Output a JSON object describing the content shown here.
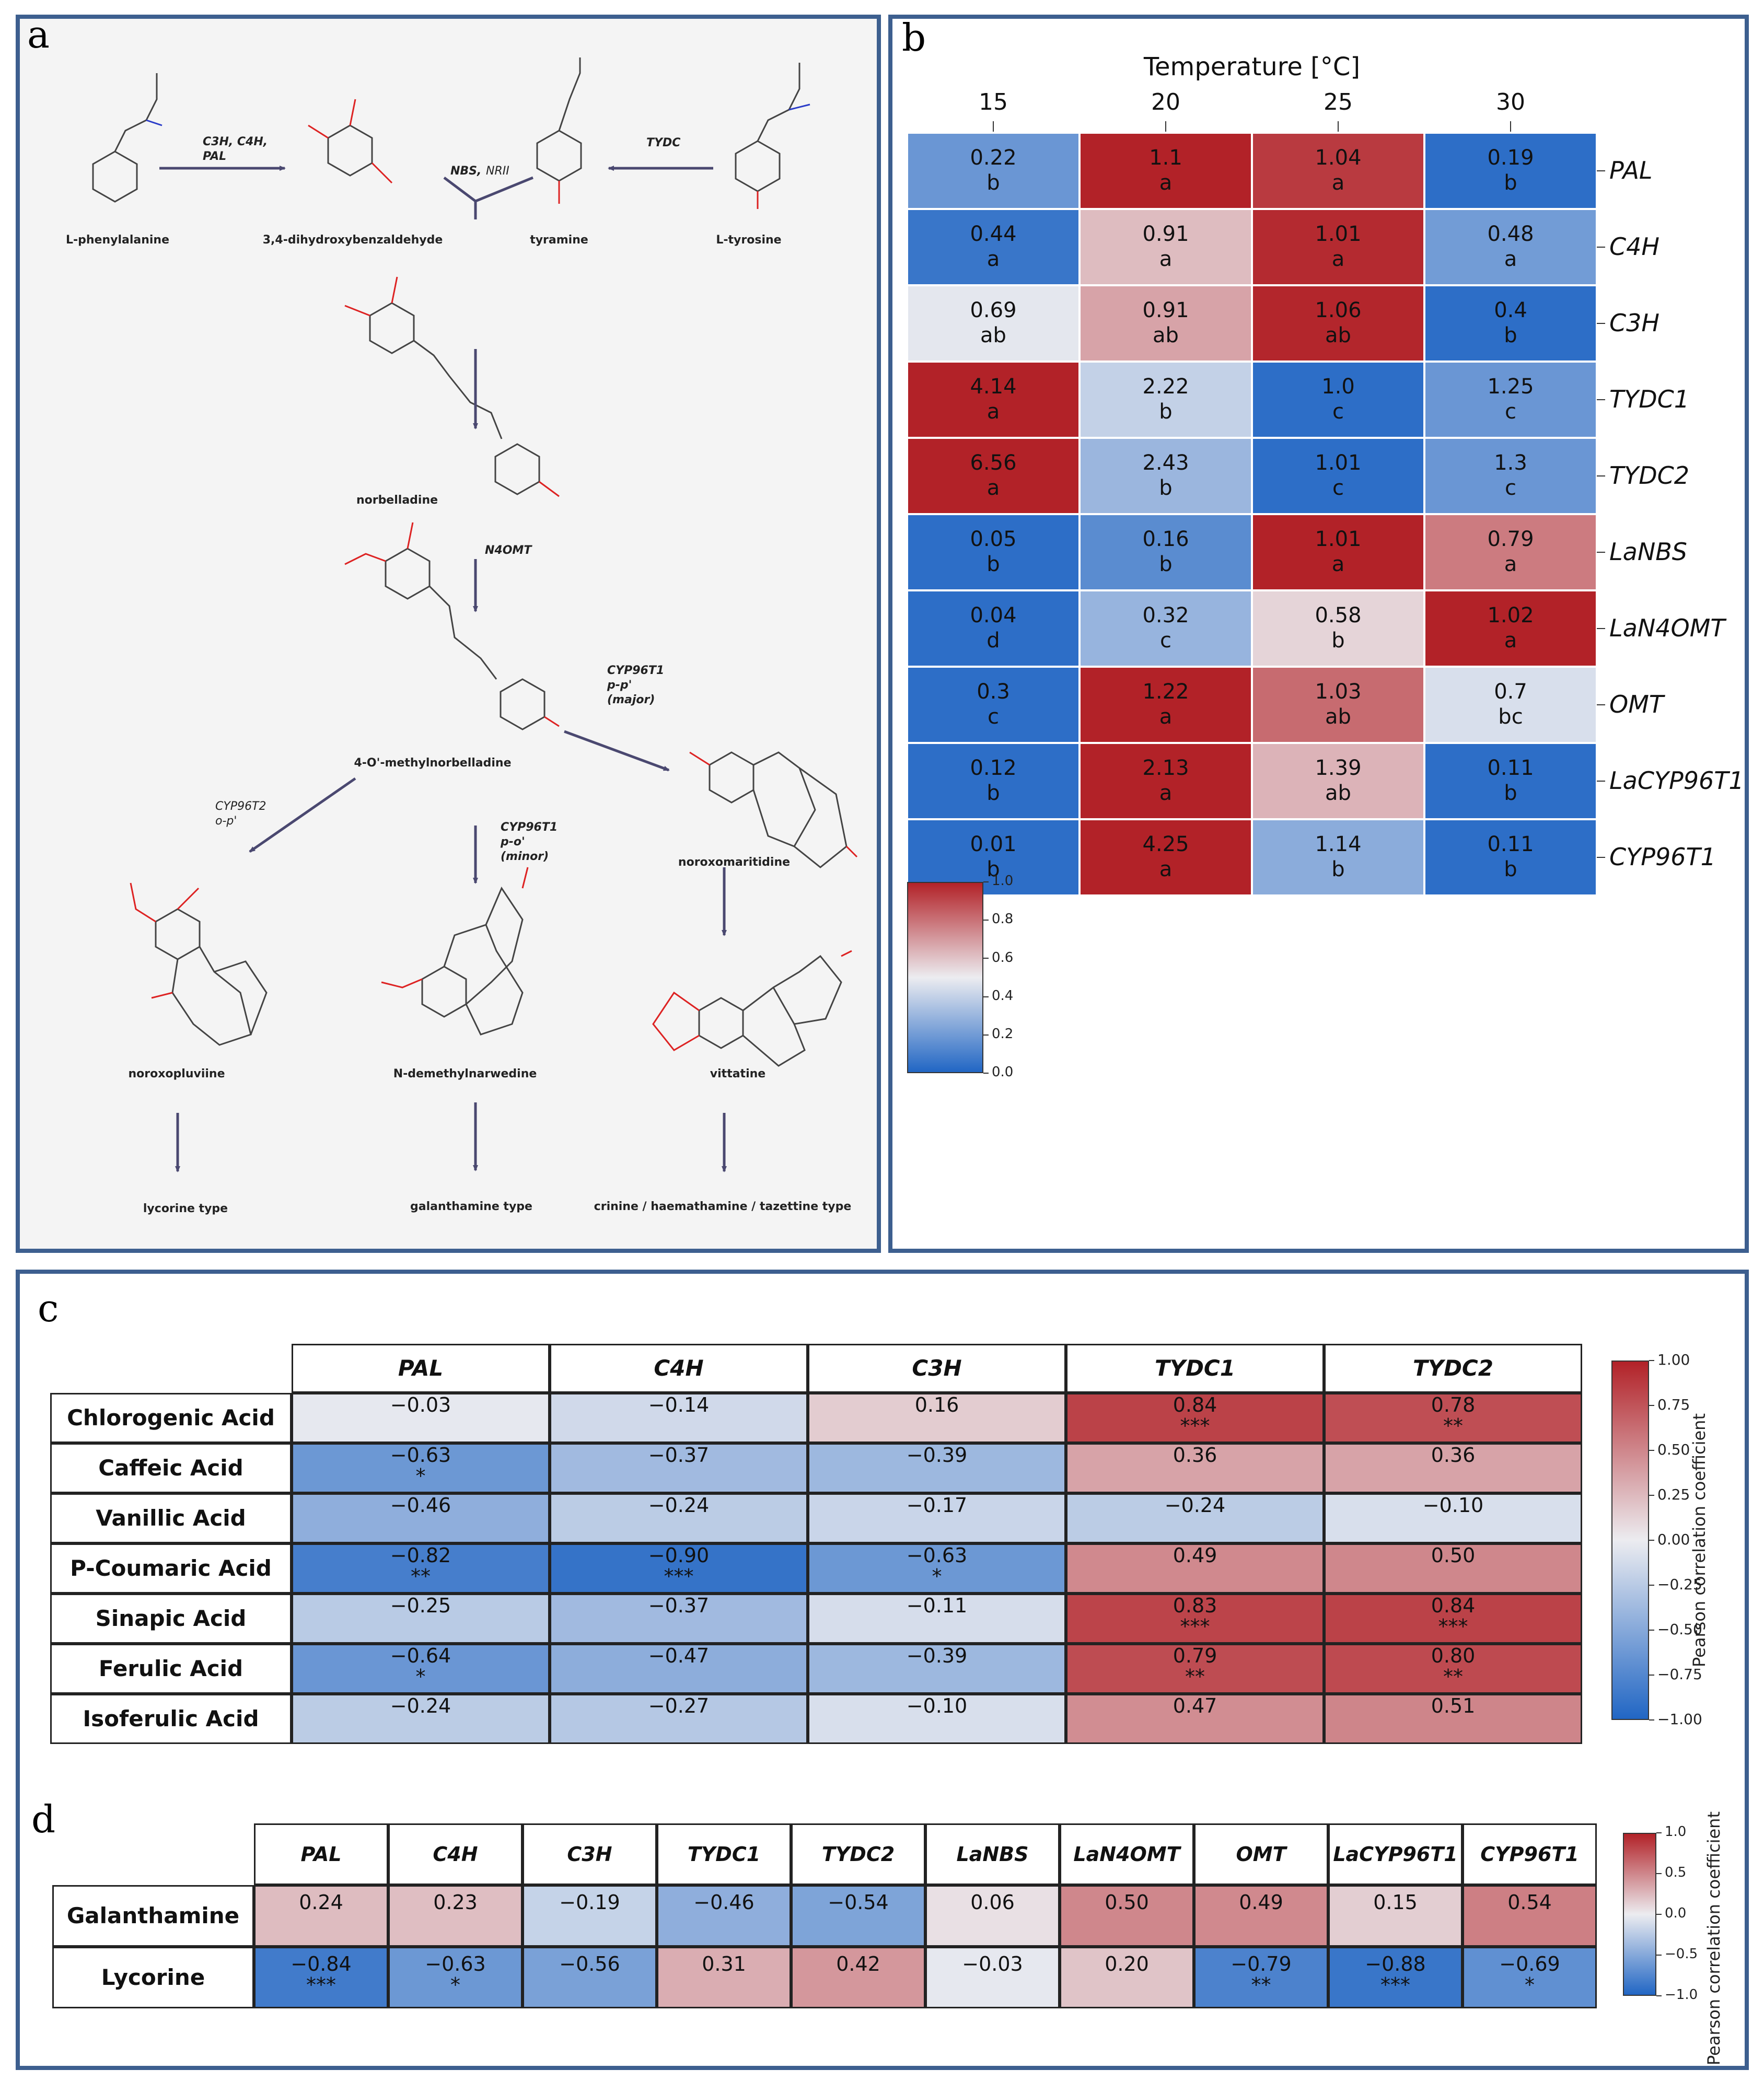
{
  "panel_labels": {
    "a": "a",
    "b": "b",
    "c": "c",
    "d": "d"
  },
  "pathway": {
    "compounds": {
      "l_phenylalanine": "L-phenylalanine",
      "dihydroxybenzaldehyde": "3,4-dihydroxybenzaldehyde",
      "tyramine": "tyramine",
      "l_tyrosine": "L-tyrosine",
      "norbelladine": "norbelladine",
      "methylnorbelladine": "4-O'-methylnorbelladine",
      "noroxomaritidine": "noroxomaritidine",
      "noroxopluviine": "noroxopluviine",
      "n_demethylnarwedine": "N-demethylnarwedine",
      "vittatine": "vittatine",
      "lycorine_type": "lycorine type",
      "galanthamine_type": "galanthamine type",
      "crinine_type": "crinine / haemathamine / tazettine type"
    },
    "enzymes": {
      "c3h_c4h": "C3H, C4H,",
      "pal": "PAL",
      "nbs": "NBS,",
      "nrii": "NRII",
      "tydc": "TYDC",
      "n4omt": "N4OMT",
      "cyp_pp_1": "CYP96T1",
      "cyp_pp_2": "p-p'",
      "cyp_pp_3": "(major)",
      "cyp2_1": "CYP96T2",
      "cyp2_2": "o-p'",
      "cyp_po_1": "CYP96T1",
      "cyp_po_2": "p-o'",
      "cyp_po_3": "(minor)"
    }
  },
  "chart_data": [
    {
      "type": "heatmap",
      "panel": "b",
      "title": "Temperature [°C]",
      "x_categories": [
        "15",
        "20",
        "25",
        "30"
      ],
      "y_categories": [
        "PAL",
        "C4H",
        "C3H",
        "TYDC1",
        "TYDC2",
        "LaNBS",
        "LaN4OMT",
        "OMT",
        "LaCYP96T1",
        "CYP96T1"
      ],
      "values": [
        [
          "0.22",
          "1.1",
          "1.04",
          "0.19"
        ],
        [
          "0.44",
          "0.91",
          "1.01",
          "0.48"
        ],
        [
          "0.69",
          "0.91",
          "1.06",
          "0.4"
        ],
        [
          "4.14",
          "2.22",
          "1.0",
          "1.25"
        ],
        [
          "6.56",
          "2.43",
          "1.01",
          "1.3"
        ],
        [
          "0.05",
          "0.16",
          "1.01",
          "0.79"
        ],
        [
          "0.04",
          "0.32",
          "0.58",
          "1.02"
        ],
        [
          "0.3",
          "1.22",
          "1.03",
          "0.7"
        ],
        [
          "0.12",
          "2.13",
          "1.39",
          "0.11"
        ],
        [
          "0.01",
          "4.25",
          "1.14",
          "0.11"
        ]
      ],
      "letters": [
        [
          "b",
          "a",
          "a",
          "b"
        ],
        [
          "a",
          "a",
          "a",
          "a"
        ],
        [
          "ab",
          "ab",
          "ab",
          "b"
        ],
        [
          "a",
          "b",
          "c",
          "c"
        ],
        [
          "a",
          "b",
          "c",
          "c"
        ],
        [
          "b",
          "b",
          "a",
          "a"
        ],
        [
          "d",
          "c",
          "b",
          "a"
        ],
        [
          "c",
          "a",
          "ab",
          "bc"
        ],
        [
          "b",
          "a",
          "ab",
          "b"
        ],
        [
          "b",
          "a",
          "b",
          "b"
        ]
      ],
      "scaled": [
        [
          0.18,
          1.0,
          0.94,
          0.03
        ],
        [
          0.06,
          0.62,
          0.98,
          0.2
        ],
        [
          0.48,
          0.68,
          0.99,
          0.03
        ],
        [
          1.0,
          0.4,
          0.03,
          0.18
        ],
        [
          1.0,
          0.3,
          0.03,
          0.18
        ],
        [
          0.03,
          0.14,
          1.0,
          0.78
        ],
        [
          0.03,
          0.29,
          0.56,
          1.0
        ],
        [
          0.03,
          1.0,
          0.82,
          0.45
        ],
        [
          0.03,
          1.0,
          0.64,
          0.03
        ],
        [
          0.03,
          1.0,
          0.26,
          0.03
        ]
      ],
      "colorbar": {
        "ticks": [
          "1.0",
          "0.8",
          "0.6",
          "0.4",
          "0.2",
          "0.0"
        ],
        "range": [
          0,
          1
        ]
      }
    },
    {
      "type": "heatmap",
      "panel": "c",
      "x_categories": [
        "PAL",
        "C4H",
        "C3H",
        "TYDC1",
        "TYDC2"
      ],
      "y_categories": [
        "Chlorogenic Acid",
        "Caffeic Acid",
        "Vanillic Acid",
        "P-Coumaric Acid",
        "Sinapic Acid",
        "Ferulic Acid",
        "Isoferulic Acid"
      ],
      "values": [
        [
          "−0.03",
          "−0.14",
          "0.16",
          "0.84",
          "0.78"
        ],
        [
          "−0.63",
          "−0.37",
          "−0.39",
          "0.36",
          "0.36"
        ],
        [
          "−0.46",
          "−0.24",
          "−0.17",
          "−0.24",
          "−0.10"
        ],
        [
          "−0.82",
          "−0.90",
          "−0.63",
          "0.49",
          "0.50"
        ],
        [
          "−0.25",
          "−0.37",
          "−0.11",
          "0.83",
          "0.84"
        ],
        [
          "−0.64",
          "−0.47",
          "−0.39",
          "0.79",
          "0.80"
        ],
        [
          "−0.24",
          "−0.27",
          "−0.10",
          "0.47",
          "0.51"
        ]
      ],
      "significance": [
        [
          "",
          "",
          "",
          "***",
          "**"
        ],
        [
          "*",
          "",
          "",
          "",
          ""
        ],
        [
          "",
          "",
          "",
          "",
          ""
        ],
        [
          "**",
          "***",
          "*",
          "",
          ""
        ],
        [
          "",
          "",
          "",
          "***",
          "***"
        ],
        [
          "*",
          "",
          "",
          "**",
          "**"
        ],
        [
          "",
          "",
          "",
          "",
          ""
        ]
      ],
      "numeric": [
        [
          -0.03,
          -0.14,
          0.16,
          0.84,
          0.78
        ],
        [
          -0.63,
          -0.37,
          -0.39,
          0.36,
          0.36
        ],
        [
          -0.46,
          -0.24,
          -0.17,
          -0.24,
          -0.1
        ],
        [
          -0.82,
          -0.9,
          -0.63,
          0.49,
          0.5
        ],
        [
          -0.25,
          -0.37,
          -0.11,
          0.83,
          0.84
        ],
        [
          -0.64,
          -0.47,
          -0.39,
          0.79,
          0.8
        ],
        [
          -0.24,
          -0.27,
          -0.1,
          0.47,
          0.51
        ]
      ],
      "colorbar": {
        "label": "Pearson correlation coefficient",
        "ticks": [
          "1.00",
          "0.75",
          "0.50",
          "0.25",
          "0.00",
          "−0.25",
          "−0.50",
          "−0.75",
          "−1.00"
        ],
        "range": [
          -1,
          1
        ]
      }
    },
    {
      "type": "heatmap",
      "panel": "d",
      "x_categories": [
        "PAL",
        "C4H",
        "C3H",
        "TYDC1",
        "TYDC2",
        "LaNBS",
        "LaN4OMT",
        "OMT",
        "LaCYP96T1",
        "CYP96T1"
      ],
      "y_categories": [
        "Galanthamine",
        "Lycorine"
      ],
      "values": [
        [
          "0.24",
          "0.23",
          "−0.19",
          "−0.46",
          "−0.54",
          "0.06",
          "0.50",
          "0.49",
          "0.15",
          "0.54"
        ],
        [
          "−0.84",
          "−0.63",
          "−0.56",
          "0.31",
          "0.42",
          "−0.03",
          "0.20",
          "−0.79",
          "−0.88",
          "−0.69"
        ]
      ],
      "significance": [
        [
          "",
          "",
          "",
          "",
          "",
          "",
          "",
          "",
          "",
          ""
        ],
        [
          "***",
          "*",
          "",
          "",
          "",
          "",
          "",
          "**",
          "***",
          "*"
        ]
      ],
      "numeric": [
        [
          0.24,
          0.23,
          -0.19,
          -0.46,
          -0.54,
          0.06,
          0.5,
          0.49,
          0.15,
          0.54
        ],
        [
          -0.84,
          -0.63,
          -0.56,
          0.31,
          0.42,
          -0.03,
          0.2,
          -0.79,
          -0.88,
          -0.69
        ]
      ],
      "colorbar": {
        "label": "Pearson correlation coefficient",
        "ticks": [
          "1.0",
          "0.5",
          "0.0",
          "−0.5",
          "−1.0"
        ],
        "range": [
          -1,
          1
        ]
      }
    }
  ]
}
